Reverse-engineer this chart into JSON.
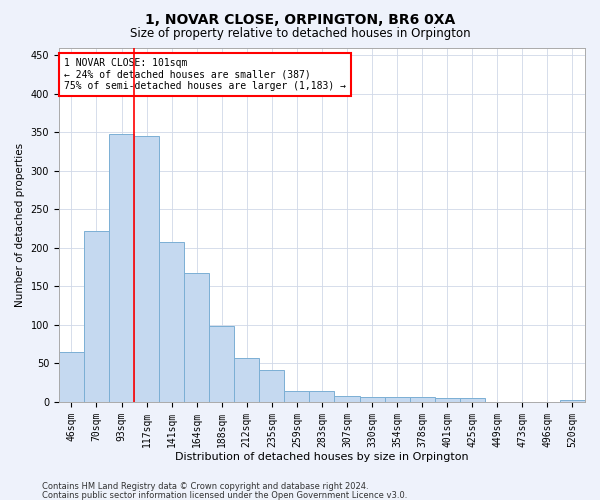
{
  "title": "1, NOVAR CLOSE, ORPINGTON, BR6 0XA",
  "subtitle": "Size of property relative to detached houses in Orpington",
  "xlabel": "Distribution of detached houses by size in Orpington",
  "ylabel": "Number of detached properties",
  "bar_color": "#c5d9f0",
  "bar_edge_color": "#7bafd4",
  "grid_color": "#d0d8e8",
  "vline_color": "red",
  "vline_x_index": 2.5,
  "categories": [
    "46sqm",
    "70sqm",
    "93sqm",
    "117sqm",
    "141sqm",
    "164sqm",
    "188sqm",
    "212sqm",
    "235sqm",
    "259sqm",
    "283sqm",
    "307sqm",
    "330sqm",
    "354sqm",
    "378sqm",
    "401sqm",
    "425sqm",
    "449sqm",
    "473sqm",
    "496sqm",
    "520sqm"
  ],
  "values": [
    65,
    222,
    348,
    345,
    208,
    168,
    98,
    57,
    42,
    14,
    14,
    8,
    6,
    6,
    6,
    5,
    5,
    0,
    0,
    0,
    3
  ],
  "ylim": [
    0,
    460
  ],
  "yticks": [
    0,
    50,
    100,
    150,
    200,
    250,
    300,
    350,
    400,
    450
  ],
  "annotation_line1": "1 NOVAR CLOSE: 101sqm",
  "annotation_line2": "← 24% of detached houses are smaller (387)",
  "annotation_line3": "75% of semi-detached houses are larger (1,183) →",
  "footer_line1": "Contains HM Land Registry data © Crown copyright and database right 2024.",
  "footer_line2": "Contains public sector information licensed under the Open Government Licence v3.0.",
  "background_color": "#eef2fb",
  "plot_bg_color": "#ffffff",
  "title_fontsize": 10,
  "subtitle_fontsize": 8.5,
  "xlabel_fontsize": 8,
  "ylabel_fontsize": 7.5,
  "tick_fontsize": 7,
  "annotation_fontsize": 7,
  "footer_fontsize": 6
}
